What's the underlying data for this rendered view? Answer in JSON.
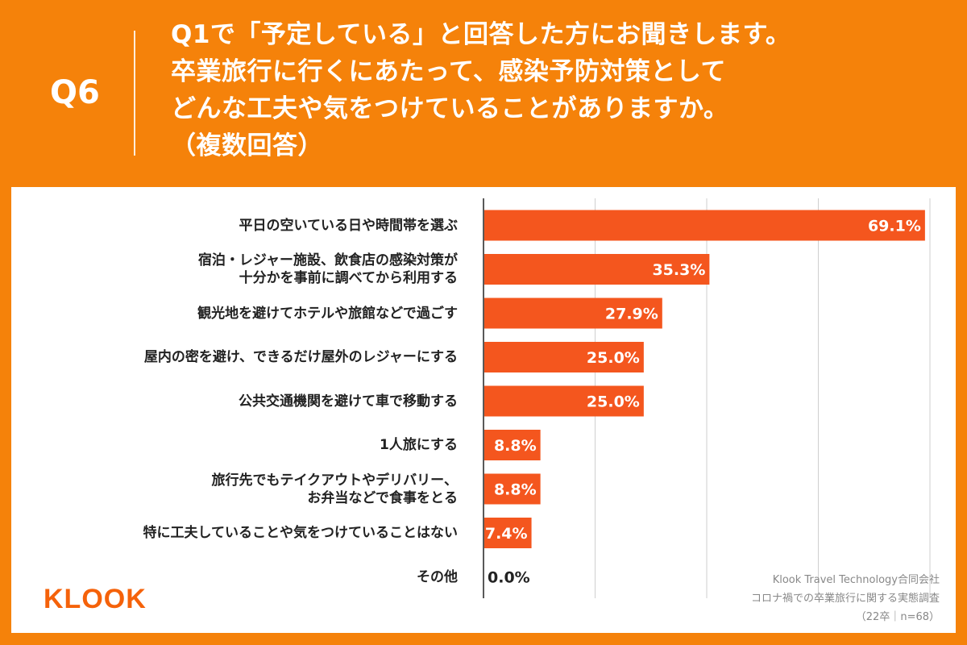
{
  "header": {
    "q_number": "Q6",
    "question_lines": [
      "Q1で「予定している」と回答した方にお聞きします。",
      "卒業旅行に行くにあたって、感染予防対策として",
      "どんな工夫や気をつけていることがありますか。",
      "（複数回答）"
    ]
  },
  "chart_data": {
    "type": "bar",
    "orientation": "horizontal",
    "categories": [
      [
        "平日の空いている日や時間帯を選ぶ"
      ],
      [
        "宿泊・レジャー施設、飲食店の感染対策が",
        "十分かを事前に調べてから利用する"
      ],
      [
        "観光地を避けてホテルや旅館などで過ごす"
      ],
      [
        "屋内の密を避け、できるだけ屋外のレジャーにする"
      ],
      [
        "公共交通機関を避けて車で移動する"
      ],
      [
        "1人旅にする"
      ],
      [
        "旅行先でもテイクアウトやデリバリー、",
        "お弁当などで食事をとる"
      ],
      [
        "特に工夫していることや気をつけていることはない"
      ],
      [
        "その他"
      ]
    ],
    "values": [
      69.1,
      35.3,
      27.9,
      25.0,
      25.0,
      8.8,
      8.8,
      7.4,
      0.0
    ],
    "labels": [
      "69.1%",
      "35.3%",
      "27.9%",
      "25.0%",
      "25.0%",
      "8.8%",
      "8.8%",
      "7.4%",
      "0.0%"
    ],
    "xlim": [
      0,
      70
    ],
    "gridlines": [
      0,
      17.5,
      35,
      52.5,
      70
    ],
    "bar_color": "#F4561E"
  },
  "footer": {
    "logo": "KLOOK",
    "source_lines": [
      "Klook Travel Technology合同会社",
      "コロナ禍での卒業旅行に関する実態調査",
      "（22卒｜n=68）"
    ]
  }
}
